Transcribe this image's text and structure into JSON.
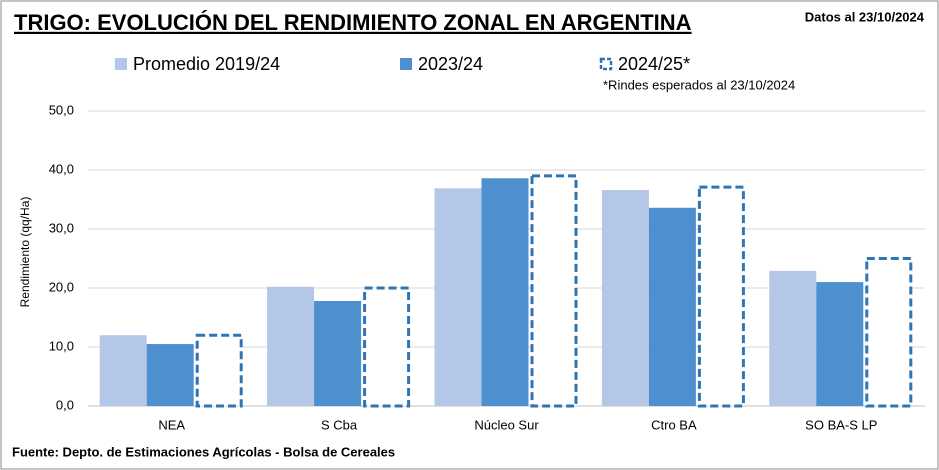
{
  "chart_data": {
    "type": "bar",
    "title": "TRIGO: EVOLUCIÓN DEL RENDIMIENTO ZONAL EN ARGENTINA",
    "date_label": "Datos al 23/10/2024",
    "note": "*Rindes esperados al 23/10/2024",
    "source": "Fuente: Depto. de Estimaciones Agrícolas - Bolsa de Cereales",
    "y_label": "Rendimiento (qq/Ha)",
    "categories": [
      "NEA",
      "S Cba",
      "Núcleo Sur",
      "Ctro BA",
      "SO BA-S LP"
    ],
    "series": [
      {
        "name": "Promedio 2019/24",
        "color": "#b4c7e7",
        "values": [
          12.0,
          20.2,
          36.9,
          36.6,
          22.9
        ]
      },
      {
        "name": "2023/24",
        "color": "#4e8fd0",
        "values": [
          10.5,
          17.8,
          38.6,
          33.6,
          21.0
        ]
      },
      {
        "name": "2024/25*",
        "color": "#2e75b6",
        "dashed": true,
        "values": [
          12.0,
          20.0,
          39.0,
          37.1,
          25.0
        ]
      }
    ],
    "ylim": [
      0,
      50
    ],
    "yticks": [
      {
        "value": 0,
        "label": "0,0"
      },
      {
        "value": 10,
        "label": "10,0"
      },
      {
        "value": 20,
        "label": "20,0"
      },
      {
        "value": 30,
        "label": "30,0"
      },
      {
        "value": 40,
        "label": "40,0"
      },
      {
        "value": 50,
        "label": "50,0"
      }
    ],
    "grid": true
  }
}
